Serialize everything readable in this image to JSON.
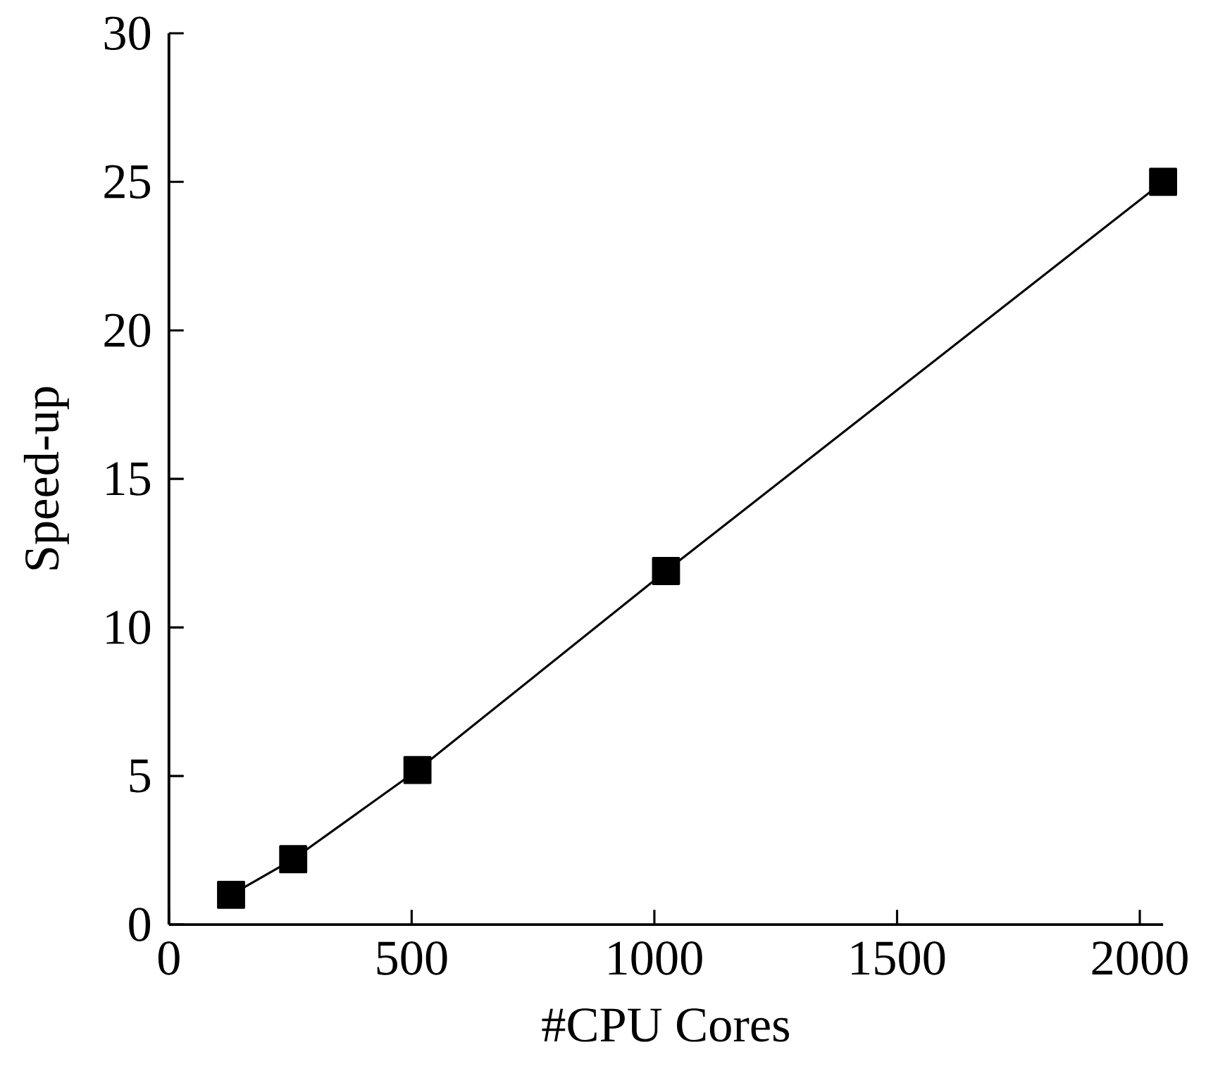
{
  "chart_data": {
    "type": "line",
    "xlabel": "#CPU Cores",
    "ylabel": "Speed-up",
    "x": [
      128,
      256,
      512,
      1024,
      2048
    ],
    "series": [
      {
        "color": "#000000",
        "values": [
          1.0,
          2.2,
          5.2,
          11.9,
          25.0
        ]
      }
    ],
    "xlim": [
      0,
      2048
    ],
    "ylim": [
      0,
      30
    ],
    "xticks": [
      0,
      500,
      1000,
      1500,
      2000
    ],
    "yticks": [
      0,
      5,
      10,
      15,
      20,
      25,
      30
    ],
    "marker": "square",
    "line_style": "solid",
    "grid": false
  }
}
